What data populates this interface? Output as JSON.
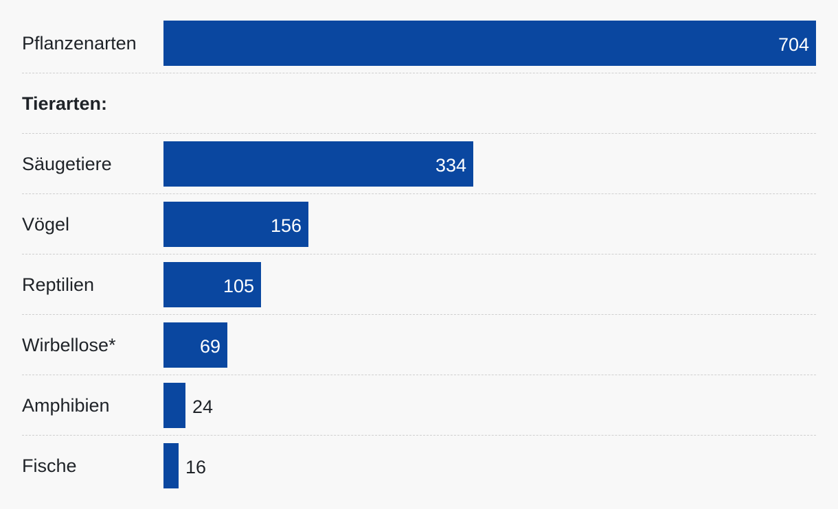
{
  "colors": {
    "bar": "#0a47a0",
    "background": "#f8f8f8",
    "text": "#1f2328",
    "value_inside": "#ffffff",
    "divider": "#cfcfcf"
  },
  "chart_data": {
    "type": "bar",
    "orientation": "horizontal",
    "title": "",
    "xlabel": "",
    "ylabel": "",
    "xlim": [
      0,
      704
    ],
    "grid": false,
    "legend": "none",
    "categories": [
      "Pflanzenarten",
      "Säugetiere",
      "Vögel",
      "Reptilien",
      "Wirbellose*",
      "Amphibien",
      "Fische"
    ],
    "values": [
      704,
      334,
      156,
      105,
      69,
      24,
      16
    ],
    "section_label": "Tierarten:",
    "section_before_index": 1
  }
}
